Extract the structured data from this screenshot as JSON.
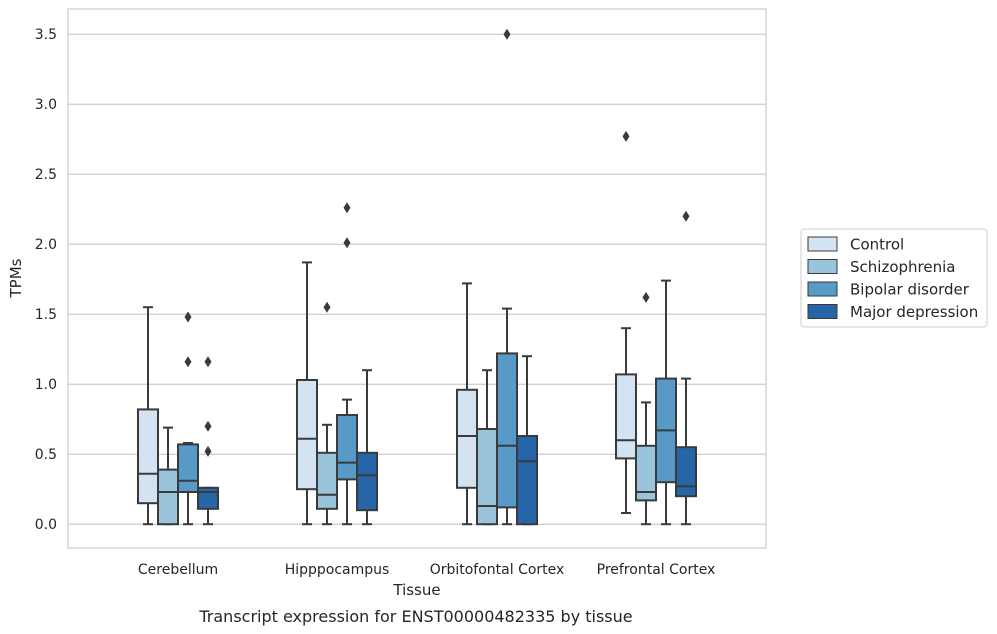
{
  "chart_data": {
    "type": "box",
    "caption": "Transcript expression for ENST00000482335 by tissue",
    "xlabel": "Tissue",
    "ylabel": "TPMs",
    "ylim": [
      -0.17,
      3.68
    ],
    "yticks": [
      "0.0",
      "0.5",
      "1.0",
      "1.5",
      "2.0",
      "2.5",
      "3.0",
      "3.5"
    ],
    "grid": "horizontal",
    "legend_position": "right",
    "categories": [
      "Cerebellum",
      "Hipppocampus",
      "Orbitofontal Cortex",
      "Prefrontal Cortex"
    ],
    "series": [
      {
        "name": "Control",
        "color": "#d4e3f2",
        "boxes": [
          {
            "whislo": 0.0,
            "q1": 0.15,
            "med": 0.36,
            "q3": 0.82,
            "whishi": 1.55,
            "fliers": []
          },
          {
            "whislo": 0.0,
            "q1": 0.25,
            "med": 0.61,
            "q3": 1.03,
            "whishi": 1.87,
            "fliers": []
          },
          {
            "whislo": 0.0,
            "q1": 0.26,
            "med": 0.63,
            "q3": 0.96,
            "whishi": 1.72,
            "fliers": []
          },
          {
            "whislo": 0.08,
            "q1": 0.47,
            "med": 0.6,
            "q3": 1.07,
            "whishi": 1.4,
            "fliers": [
              2.77
            ]
          }
        ]
      },
      {
        "name": "Schizophrenia",
        "color": "#9ac3dc",
        "boxes": [
          {
            "whislo": 0.0,
            "q1": 0.0,
            "med": 0.23,
            "q3": 0.39,
            "whishi": 0.69,
            "fliers": []
          },
          {
            "whislo": 0.0,
            "q1": 0.11,
            "med": 0.21,
            "q3": 0.51,
            "whishi": 0.71,
            "fliers": [
              1.55
            ]
          },
          {
            "whislo": 0.0,
            "q1": 0.0,
            "med": 0.13,
            "q3": 0.68,
            "whishi": 1.1,
            "fliers": []
          },
          {
            "whislo": 0.0,
            "q1": 0.17,
            "med": 0.23,
            "q3": 0.56,
            "whishi": 0.87,
            "fliers": [
              1.62
            ]
          }
        ]
      },
      {
        "name": "Bipolar disorder",
        "color": "#5799c7",
        "boxes": [
          {
            "whislo": 0.0,
            "q1": 0.23,
            "med": 0.31,
            "q3": 0.57,
            "whishi": 0.58,
            "fliers": [
              1.16,
              1.48
            ]
          },
          {
            "whislo": 0.0,
            "q1": 0.32,
            "med": 0.44,
            "q3": 0.78,
            "whishi": 0.89,
            "fliers": [
              2.01,
              2.26
            ]
          },
          {
            "whislo": 0.0,
            "q1": 0.12,
            "med": 0.56,
            "q3": 1.22,
            "whishi": 1.54,
            "fliers": [
              3.5
            ]
          },
          {
            "whislo": 0.0,
            "q1": 0.3,
            "med": 0.67,
            "q3": 1.04,
            "whishi": 1.74,
            "fliers": []
          }
        ]
      },
      {
        "name": "Major depression",
        "color": "#2666a8",
        "boxes": [
          {
            "whislo": 0.0,
            "q1": 0.11,
            "med": 0.23,
            "q3": 0.26,
            "whishi": 0.26,
            "fliers": [
              0.52,
              0.7,
              1.16
            ]
          },
          {
            "whislo": 0.0,
            "q1": 0.1,
            "med": 0.35,
            "q3": 0.51,
            "whishi": 1.1,
            "fliers": []
          },
          {
            "whislo": 0.0,
            "q1": 0.0,
            "med": 0.45,
            "q3": 0.63,
            "whishi": 1.2,
            "fliers": []
          },
          {
            "whislo": 0.0,
            "q1": 0.2,
            "med": 0.27,
            "q3": 0.55,
            "whishi": 1.04,
            "fliers": [
              2.2
            ]
          }
        ]
      }
    ]
  }
}
